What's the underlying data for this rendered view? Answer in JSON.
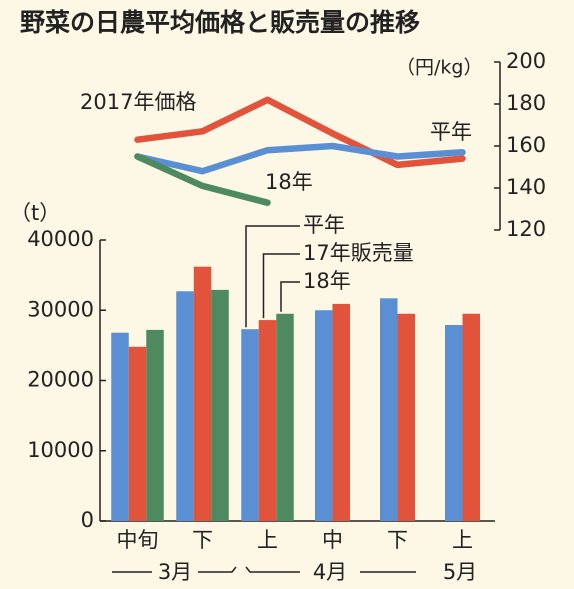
{
  "chart_data": {
    "type": "bar",
    "title": "野菜の日農平均価格と販売量の推移",
    "y_unit": "（t）",
    "y2_unit": "（円/kg）",
    "categories": [
      "中旬",
      "下",
      "上",
      "中",
      "下",
      "上"
    ],
    "groups": [
      "3月",
      "4月",
      "5月"
    ],
    "ylim": [
      0,
      40000
    ],
    "yticks": [
      0,
      10000,
      20000,
      30000,
      40000
    ],
    "y2lim": [
      120,
      200
    ],
    "y2ticks": [
      120,
      140,
      160,
      180,
      200
    ],
    "series": [
      {
        "name": "平年",
        "type": "bar",
        "color": "#5b8fd3",
        "values": [
          26800,
          32700,
          27300,
          30000,
          31700,
          27900
        ]
      },
      {
        "name": "17年販売量",
        "type": "bar",
        "color": "#e2533b",
        "values": [
          24800,
          36200,
          28600,
          30900,
          29500,
          29500
        ]
      },
      {
        "name": "18年",
        "type": "bar",
        "color": "#4e8a5f",
        "values": [
          27200,
          32900,
          29500,
          null,
          null,
          null
        ]
      },
      {
        "name": "2017年価格",
        "type": "line",
        "axis": "y2",
        "color": "#e2533b",
        "values": [
          163,
          167,
          182,
          166,
          151,
          154
        ]
      },
      {
        "name": "平年",
        "type": "line",
        "axis": "y2",
        "color": "#5b8fd3",
        "values": [
          155,
          148,
          158,
          160,
          155,
          157
        ]
      },
      {
        "name": "18年",
        "type": "line",
        "axis": "y2",
        "color": "#4e8a5f",
        "values": [
          155,
          141,
          133,
          null,
          null,
          null
        ]
      }
    ]
  }
}
